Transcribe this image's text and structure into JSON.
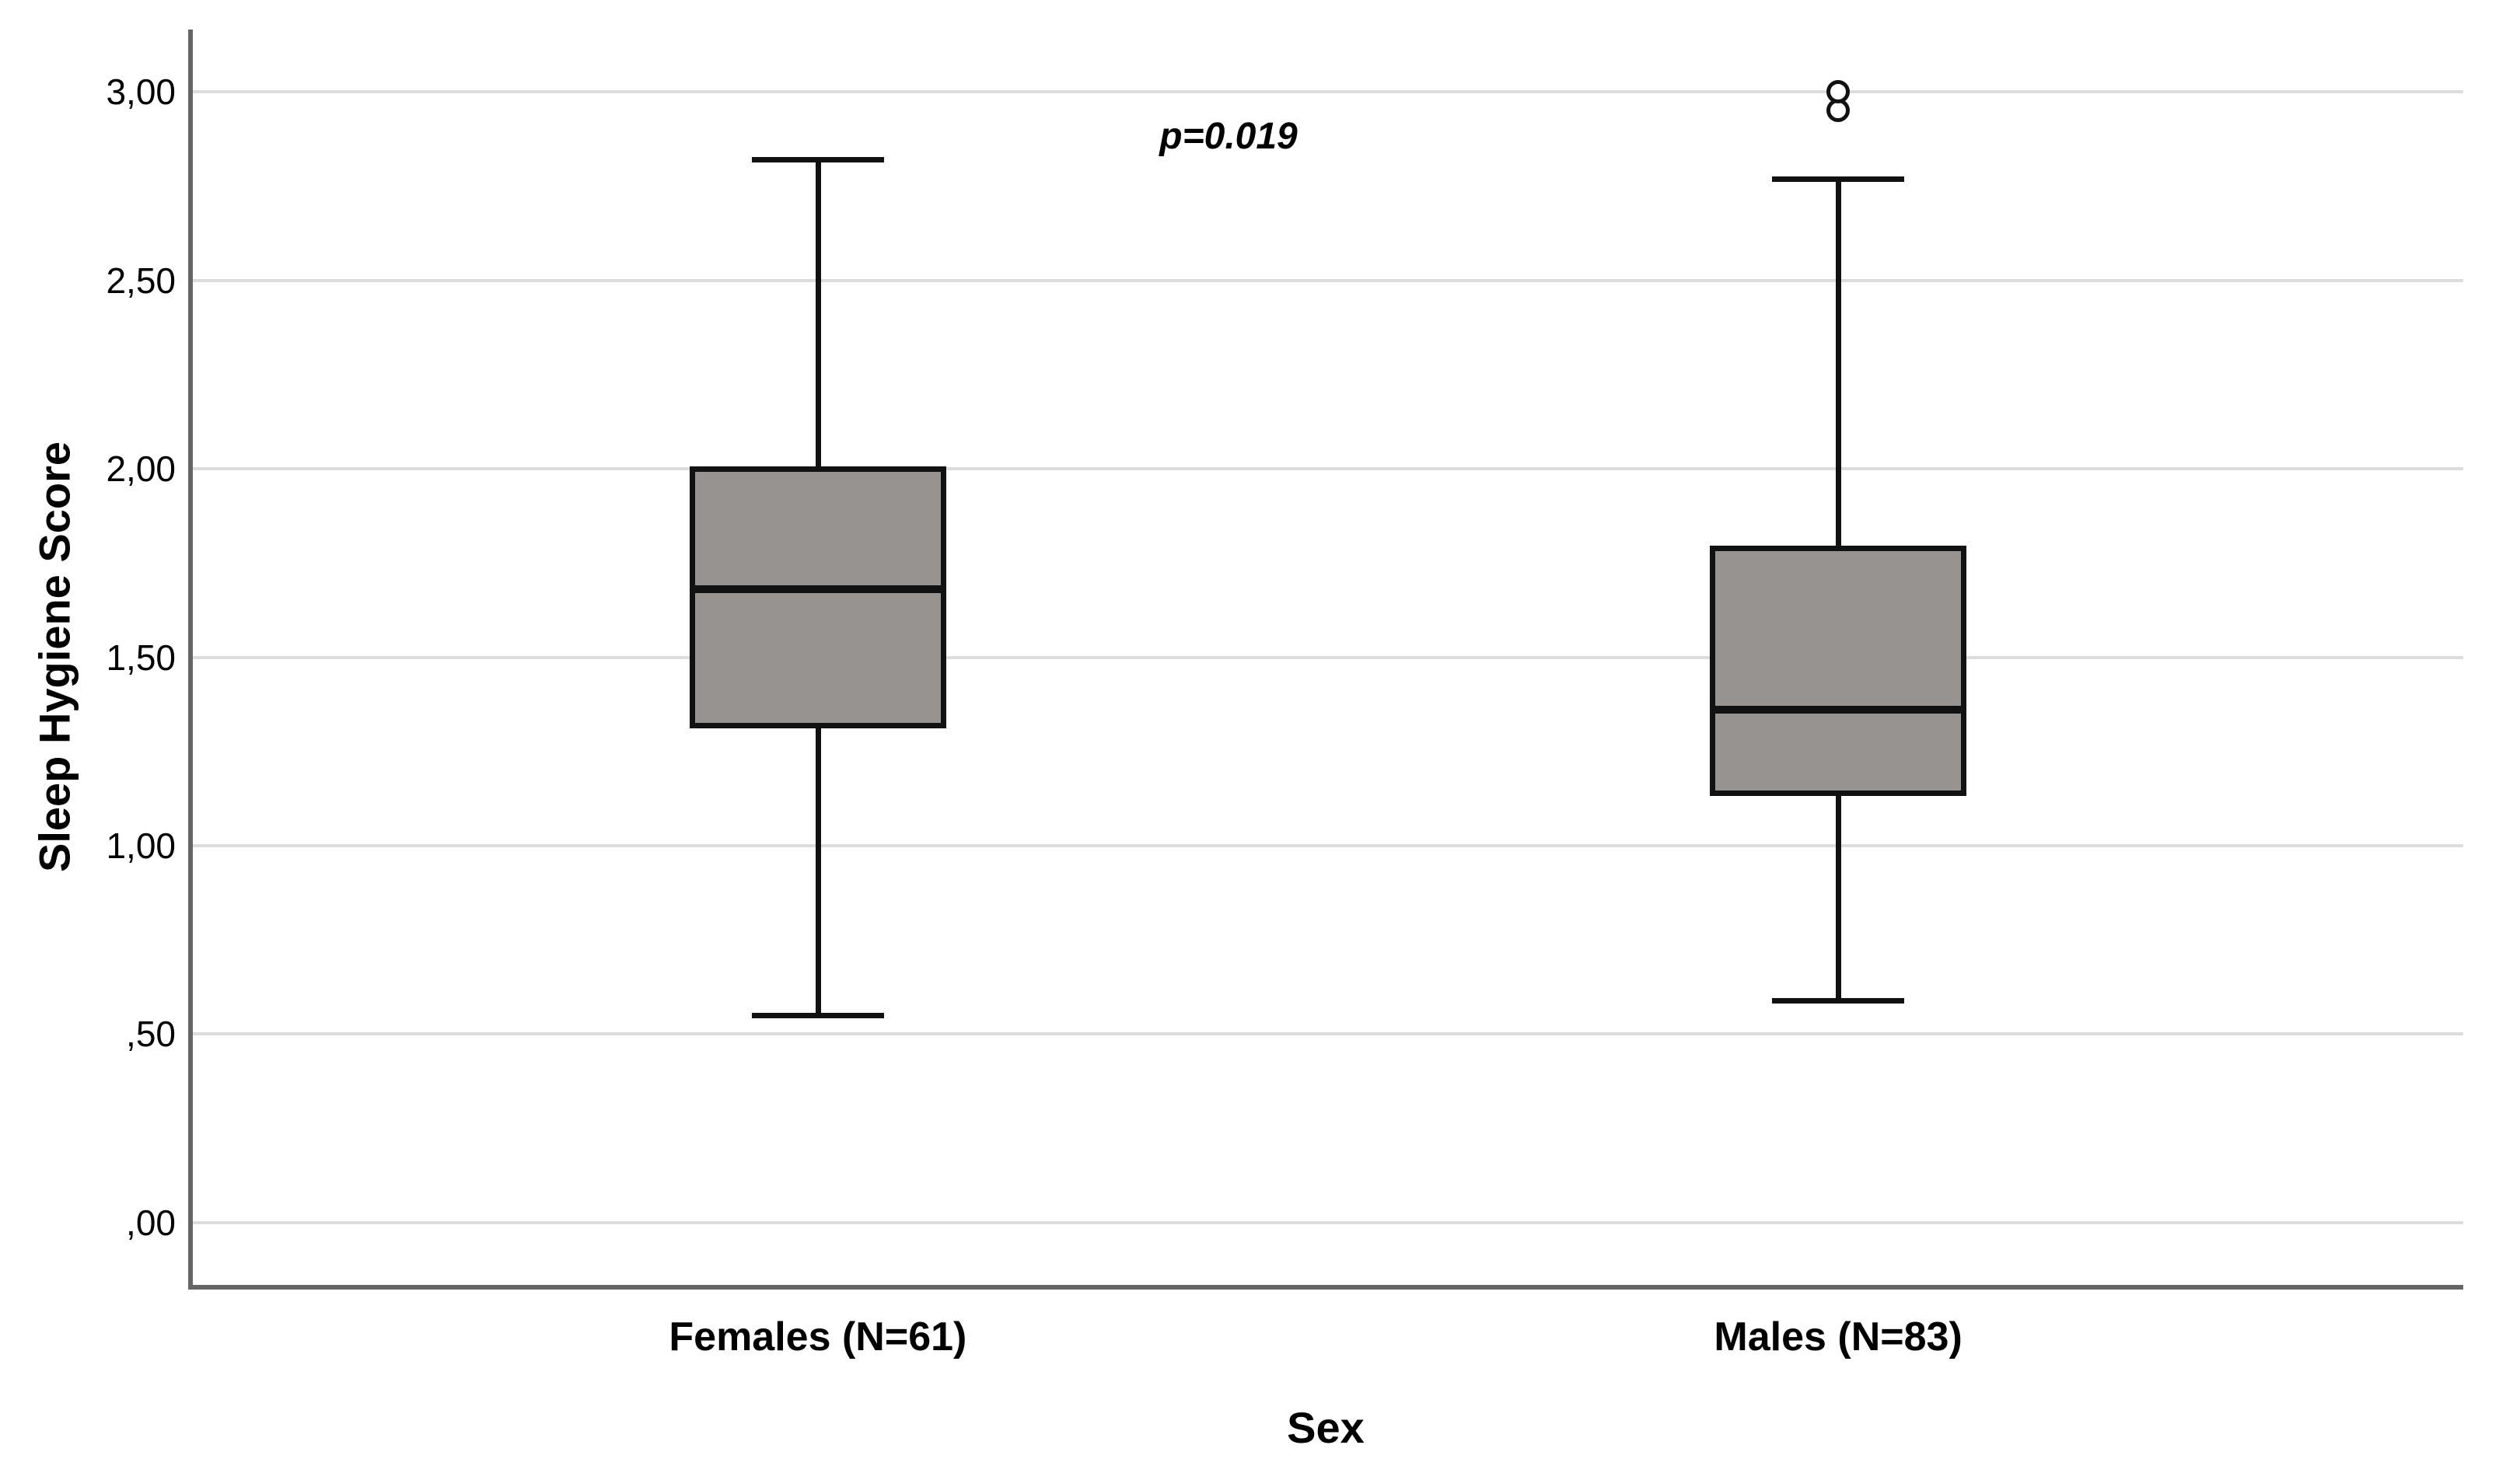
{
  "chart_data": {
    "type": "boxplot",
    "title": "",
    "xlabel": "Sex",
    "ylabel": "Sleep Hygiene Score",
    "annotation": "p=0.019",
    "grid": "horizontal",
    "legend": "none",
    "decimal_separator": ",",
    "y_axis": {
      "range": [
        -0.165,
        3.165
      ],
      "ticks": [
        {
          "label": "3,00",
          "value": 3.0
        },
        {
          "label": "2,50",
          "value": 2.5
        },
        {
          "label": "2,00",
          "value": 2.0
        },
        {
          "label": "1,50",
          "value": 1.5
        },
        {
          "label": "1,00",
          "value": 1.0
        },
        {
          "label": ",50",
          "value": 0.5
        },
        {
          "label": ",00",
          "value": 0.0
        }
      ]
    },
    "categories": [
      "Females (N=61)",
      "Males (N=83)"
    ],
    "boxes": [
      {
        "category": "Females (N=61)",
        "n": 61,
        "x_frac": 0.2753,
        "whisker_low": 0.55,
        "q1": 1.32,
        "median": 1.68,
        "q3": 2.0,
        "whisker_high": 2.82,
        "outliers": []
      },
      {
        "category": "Males (N=83)",
        "n": 83,
        "x_frac": 0.7247,
        "whisker_low": 0.59,
        "q1": 1.14,
        "median": 1.36,
        "q3": 1.79,
        "whisker_high": 2.77,
        "outliers": [
          2.95,
          3.0
        ]
      }
    ],
    "colors": {
      "box_fill": "#969391",
      "box_border": "#111111",
      "median": "#111111",
      "whisker": "#111111",
      "grid": "#dcdcdc",
      "axis": "#666666",
      "text": "#000000",
      "background": "#ffffff"
    }
  }
}
